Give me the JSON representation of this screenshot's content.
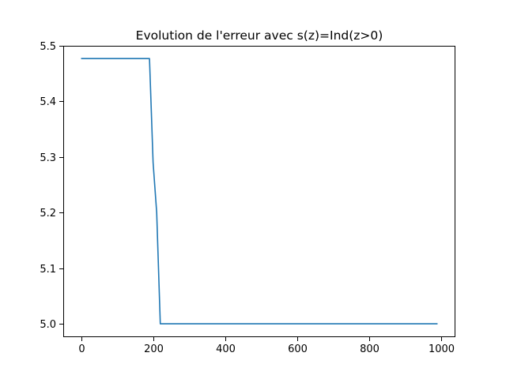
{
  "chart_data": {
    "type": "line",
    "title": "Evolution de l'erreur avec s(z)=Ind(z>0)",
    "xlabel": "",
    "ylabel": "",
    "xlim": [
      -49.5,
      1039.5
    ],
    "ylim": [
      4.976,
      5.5
    ],
    "grid": false,
    "legend": "none",
    "x_ticks": [
      0,
      200,
      400,
      600,
      800,
      1000
    ],
    "x_tick_labels": [
      "0",
      "200",
      "400",
      "600",
      "800",
      "1000"
    ],
    "y_ticks": [
      5.0,
      5.1,
      5.2,
      5.3,
      5.4,
      5.5
    ],
    "y_tick_labels": [
      "5.0",
      "5.1",
      "5.2",
      "5.3",
      "5.4",
      "5.5"
    ],
    "series": [
      {
        "color": "#1f77b4",
        "x": [
          0,
          190,
          200,
          210,
          220,
          230,
          400,
          600,
          800,
          990
        ],
        "y": [
          5.477,
          5.477,
          5.29,
          5.2,
          5.0,
          5.0,
          5.0,
          5.0,
          5.0,
          5.0
        ]
      }
    ]
  }
}
